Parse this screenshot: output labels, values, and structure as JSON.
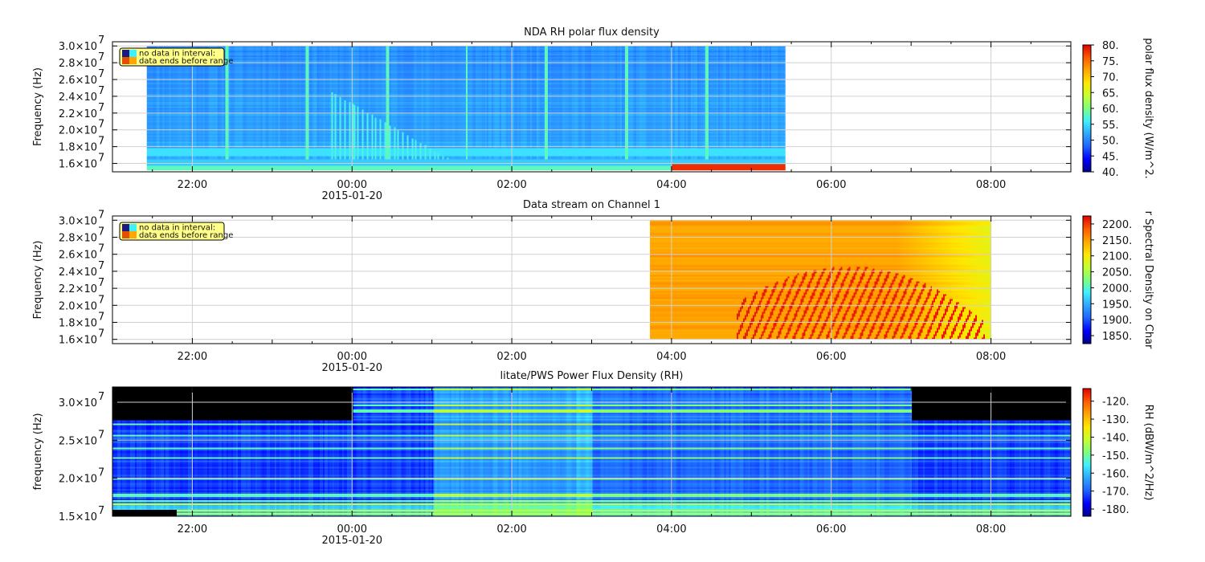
{
  "colors": {
    "colormap": [
      "#00008b",
      "#0000ff",
      "#1e64ff",
      "#2ea7ff",
      "#3ff0ff",
      "#7dff7d",
      "#c6ff2e",
      "#ffe600",
      "#ffa600",
      "#ff5a00",
      "#e00000"
    ],
    "grid": "#d0d0d0",
    "axis": "#000000",
    "legend_bg": "#ffff88"
  },
  "chart_data": [
    {
      "type": "heatmap",
      "title": "NDA  RH polar flux density",
      "ylabel": "Frequency (Hz)",
      "colorbar_label": "polar flux density  (W/m^2.",
      "colorbar_ticks": [
        "40.",
        "45.",
        "50.",
        "55.",
        "60.",
        "65.",
        "70.",
        "75.",
        "80."
      ],
      "colorbar_range": [
        40,
        80
      ],
      "ylim": [
        15000000.0,
        30500000.0
      ],
      "y_ticks": [
        {
          "v": 16000000.0,
          "m": "1.6×10",
          "e": "7"
        },
        {
          "v": 18000000.0,
          "m": "1.8×10",
          "e": "7"
        },
        {
          "v": 20000000.0,
          "m": "2.0×10",
          "e": "7"
        },
        {
          "v": 22000000.0,
          "m": "2.2×10",
          "e": "7"
        },
        {
          "v": 24000000.0,
          "m": "2.4×10",
          "e": "7"
        },
        {
          "v": 26000000.0,
          "m": "2.6×10",
          "e": "7"
        },
        {
          "v": 28000000.0,
          "m": "2.8×10",
          "e": "7"
        },
        {
          "v": 30000000.0,
          "m": "3.0×10",
          "e": "7"
        }
      ],
      "x_ticks": [
        {
          "t": 22,
          "label": "22:00"
        },
        {
          "t": 24,
          "label": "00:00",
          "sub": "2015-01-20"
        },
        {
          "t": 26,
          "label": "02:00"
        },
        {
          "t": 28,
          "label": "04:00"
        },
        {
          "t": 30,
          "label": "06:00"
        },
        {
          "t": 32,
          "label": "08:00"
        }
      ],
      "xlim_hours": [
        21.0,
        33.0
      ],
      "data_hours": [
        21.43,
        29.43
      ],
      "data_freq": [
        15200000.0,
        30000000.0
      ],
      "legend": [
        "no data in interval:",
        "data ends before range"
      ],
      "show_subdate_under": "00:00"
    },
    {
      "type": "heatmap",
      "title": "Data stream on Channel 1",
      "ylabel": "Frequency (Hz)",
      "colorbar_label": "r Spectral Density on Char",
      "colorbar_ticks": [
        "1850.",
        "1900.",
        "1950.",
        "2000.",
        "2050.",
        "2100.",
        "2150.",
        "2200."
      ],
      "colorbar_range": [
        1825,
        2225
      ],
      "ylim": [
        15500000.0,
        30500000.0
      ],
      "y_ticks": [
        {
          "v": 16000000.0,
          "m": "1.6×10",
          "e": "7"
        },
        {
          "v": 18000000.0,
          "m": "1.8×10",
          "e": "7"
        },
        {
          "v": 20000000.0,
          "m": "2.0×10",
          "e": "7"
        },
        {
          "v": 22000000.0,
          "m": "2.2×10",
          "e": "7"
        },
        {
          "v": 24000000.0,
          "m": "2.4×10",
          "e": "7"
        },
        {
          "v": 26000000.0,
          "m": "2.6×10",
          "e": "7"
        },
        {
          "v": 28000000.0,
          "m": "2.8×10",
          "e": "7"
        },
        {
          "v": 30000000.0,
          "m": "3.0×10",
          "e": "7"
        }
      ],
      "x_ticks": [
        {
          "t": 22,
          "label": "22:00"
        },
        {
          "t": 24,
          "label": "00:00",
          "sub": "2015-01-20"
        },
        {
          "t": 26,
          "label": "02:00"
        },
        {
          "t": 28,
          "label": "04:00"
        },
        {
          "t": 30,
          "label": "06:00"
        },
        {
          "t": 32,
          "label": "08:00"
        }
      ],
      "xlim_hours": [
        21.0,
        33.0
      ],
      "data_hours": [
        27.73,
        32.0
      ],
      "data_freq": [
        16000000.0,
        30000000.0
      ],
      "legend": [
        "no data in interval:",
        "data ends before range"
      ]
    },
    {
      "type": "heatmap",
      "title": "litate/PWS  Power Flux Density (RH)",
      "ylabel": "frequency (Hz)",
      "colorbar_label": "RH (dBW/m^2/Hz)",
      "colorbar_ticks": [
        "-180.",
        "-170.",
        "-160.",
        "-150.",
        "-140.",
        "-130.",
        "-120."
      ],
      "colorbar_range": [
        -184,
        -113
      ],
      "ylim": [
        15000000.0,
        32000000.0
      ],
      "y_ticks": [
        {
          "v": 15000000.0,
          "m": "1.5×10",
          "e": "7"
        },
        {
          "v": 20000000.0,
          "m": "2.0×10",
          "e": "7"
        },
        {
          "v": 25000000.0,
          "m": "2.5×10",
          "e": "7"
        },
        {
          "v": 30000000.0,
          "m": "3.0×10",
          "e": "7"
        }
      ],
      "x_ticks": [
        {
          "t": 22,
          "label": "22:00"
        },
        {
          "t": 24,
          "label": "00:00",
          "sub": "2015-01-20"
        },
        {
          "t": 26,
          "label": "02:00"
        },
        {
          "t": 28,
          "label": "04:00"
        },
        {
          "t": 30,
          "label": "06:00"
        },
        {
          "t": 32,
          "label": "08:00"
        }
      ],
      "xlim_hours": [
        21.0,
        33.0
      ],
      "data_hours": [
        21.0,
        33.0
      ],
      "data_freq": [
        15000000.0,
        32000000.0
      ]
    }
  ]
}
